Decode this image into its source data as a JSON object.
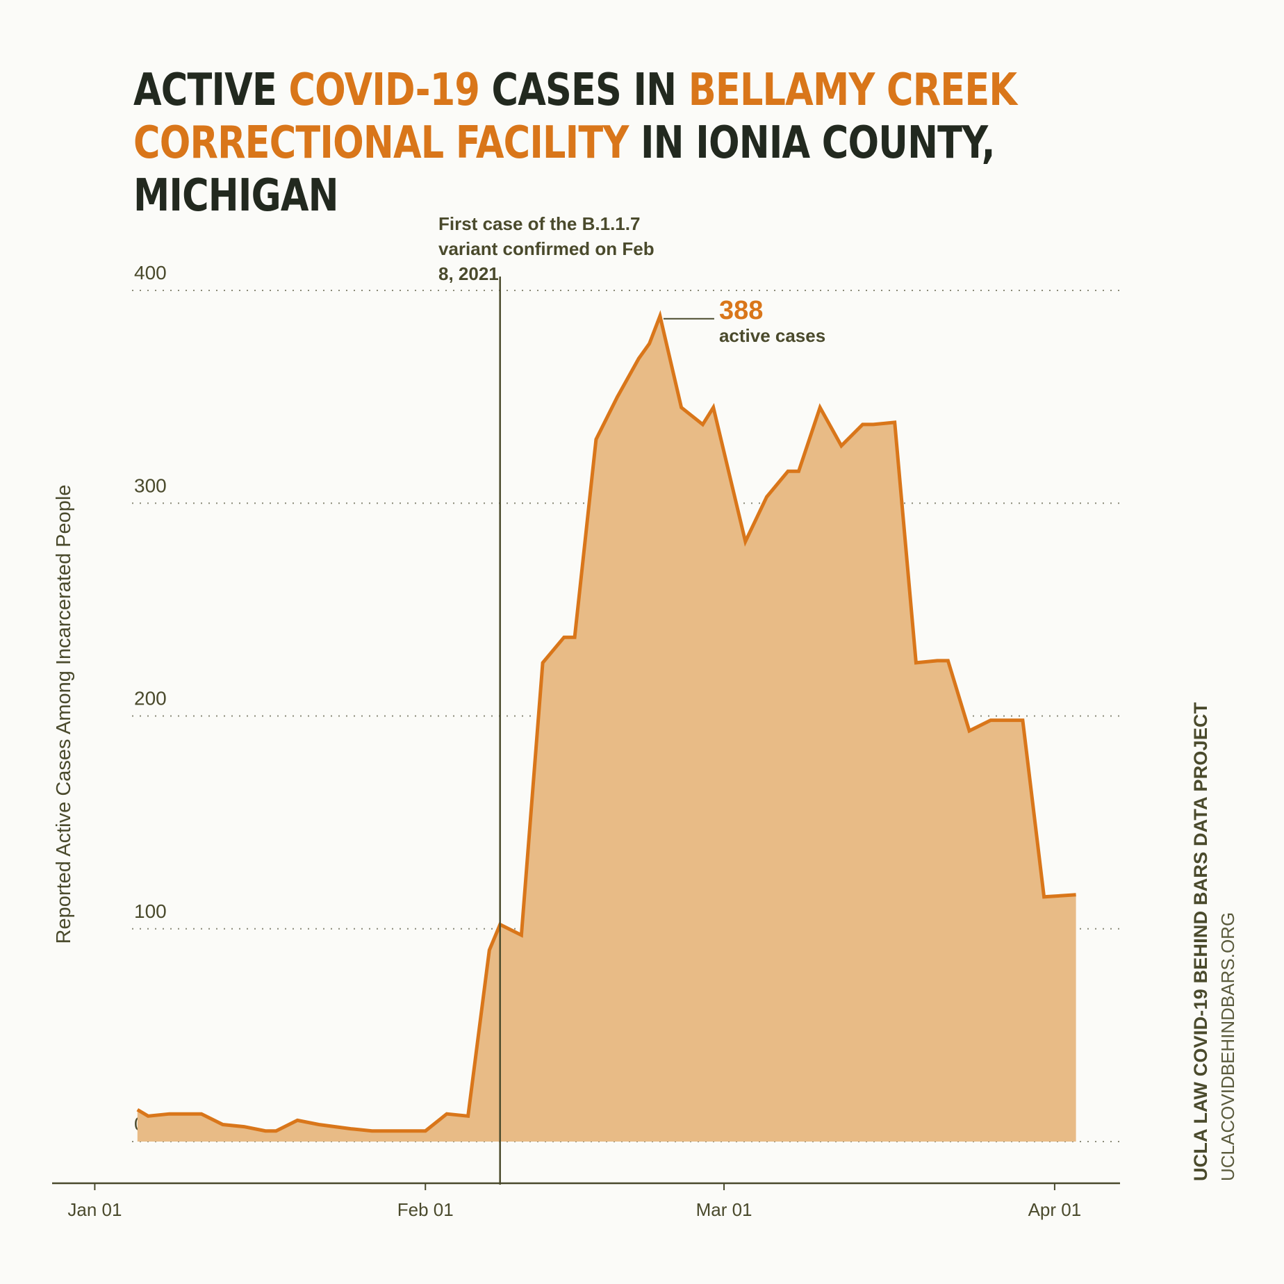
{
  "title": {
    "parts": [
      {
        "text": "ACTIVE ",
        "highlight": false
      },
      {
        "text": "COVID-19",
        "highlight": true
      },
      {
        "text": " CASES IN ",
        "highlight": false
      },
      {
        "text": "BELLAMY CREEK CORRECTIONAL FACILITY",
        "highlight": true
      },
      {
        "text": " IN IONIA COUNTY, MICHIGAN",
        "highlight": false
      }
    ]
  },
  "colors": {
    "text": "#22291f",
    "accent": "#d9761a",
    "area_fill": "#e8bb86",
    "axis": "#4a4a2c",
    "grid": "#8a8a78",
    "background": "#fbfbf8"
  },
  "chart_data": {
    "type": "area",
    "ylabel": "Reported Active Cases Among Incarcerated People",
    "xlabel": "",
    "ylim": [
      0,
      400
    ],
    "yticks": [
      0,
      100,
      200,
      300,
      400
    ],
    "xlim": [
      "2020-12-28",
      "2021-04-07"
    ],
    "xticks": [
      {
        "date": "2021-01-01",
        "label": "Jan 01"
      },
      {
        "date": "2021-02-01",
        "label": "Feb 01"
      },
      {
        "date": "2021-03-01",
        "label": "Mar 01"
      },
      {
        "date": "2021-04-01",
        "label": "Apr 01"
      }
    ],
    "grid": "horizontal dotted",
    "series": [
      {
        "x": [
          "2021-01-05",
          "2021-01-06",
          "2021-01-08",
          "2021-01-11",
          "2021-01-13",
          "2021-01-15",
          "2021-01-17",
          "2021-01-18",
          "2021-01-20",
          "2021-01-22",
          "2021-01-25",
          "2021-01-27",
          "2021-01-29",
          "2021-02-01",
          "2021-02-03",
          "2021-02-05",
          "2021-02-07",
          "2021-02-08",
          "2021-02-10",
          "2021-02-12",
          "2021-02-14",
          "2021-02-15",
          "2021-02-17",
          "2021-02-19",
          "2021-02-21",
          "2021-02-22",
          "2021-02-23",
          "2021-02-25",
          "2021-02-27",
          "2021-02-28",
          "2021-03-03",
          "2021-03-05",
          "2021-03-07",
          "2021-03-08",
          "2021-03-10",
          "2021-03-12",
          "2021-03-14",
          "2021-03-15",
          "2021-03-17",
          "2021-03-19",
          "2021-03-21",
          "2021-03-22",
          "2021-03-24",
          "2021-03-26",
          "2021-03-29",
          "2021-03-31",
          "2021-04-03"
        ],
        "y": [
          15,
          12,
          13,
          13,
          8,
          7,
          5,
          5,
          10,
          8,
          6,
          5,
          5,
          5,
          13,
          12,
          90,
          102,
          97,
          225,
          237,
          237,
          330,
          350,
          368,
          375,
          388,
          345,
          337,
          345,
          282,
          303,
          315,
          315,
          345,
          327,
          337,
          337,
          338,
          225,
          226,
          226,
          193,
          198,
          198,
          115,
          116
        ]
      }
    ],
    "annotations": [
      {
        "type": "vline",
        "x": "2021-02-08",
        "text": "First case of the B.1.1.7 variant confirmed on Feb 8, 2021"
      },
      {
        "type": "peak",
        "x": "2021-02-23",
        "y": 388,
        "value_text": "388",
        "text": "active cases"
      }
    ]
  },
  "credits": {
    "org": "UCLA LAW COVID-19 BEHIND BARS DATA PROJECT",
    "url": "UCLACOVIDBEHINDBARS.ORG"
  }
}
